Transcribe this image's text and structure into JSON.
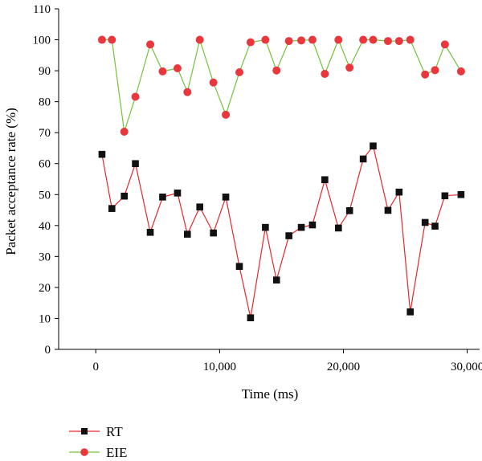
{
  "chart_data": {
    "type": "line",
    "xlabel": "Time (ms)",
    "ylabel": "Packet acceptance rate (%)",
    "xlim": [
      -3000,
      31000
    ],
    "ylim": [
      0,
      110
    ],
    "xticks": [
      0,
      10000,
      20000,
      30000
    ],
    "xtick_labels": [
      "0",
      "10,000",
      "20,000",
      "30,000"
    ],
    "yticks": [
      0,
      10,
      20,
      30,
      40,
      50,
      60,
      70,
      80,
      90,
      100,
      110
    ],
    "ytick_labels": [
      "0",
      "10",
      "20",
      "30",
      "40",
      "50",
      "60",
      "70",
      "80",
      "90",
      "100",
      "110"
    ],
    "grid": false,
    "legend_placement": "bottom-left, below plot",
    "series": [
      {
        "name": "RT",
        "color": "#e8262b",
        "marker": "square",
        "marker_color": "#111111",
        "x": [
          500,
          1300,
          2300,
          3200,
          4400,
          5400,
          6600,
          7400,
          8400,
          9500,
          10500,
          11600,
          12500,
          13700,
          14600,
          15600,
          16600,
          17500,
          18500,
          19600,
          20500,
          21600,
          22400,
          23600,
          24500,
          25400,
          26600,
          27400,
          28200,
          29500
        ],
        "values": [
          63,
          45.5,
          49.5,
          60,
          37.8,
          49.2,
          50.5,
          37.2,
          46,
          37.6,
          49.2,
          26.8,
          10.2,
          39.4,
          22.4,
          36.7,
          39.4,
          40.2,
          54.8,
          39.2,
          44.8,
          61.5,
          65.7,
          44.9,
          50.8,
          12.1,
          41,
          39.8,
          49.6,
          50
        ]
      },
      {
        "name": "EIE",
        "color": "#73c23a",
        "marker": "circle",
        "marker_color": "#e8383d",
        "x": [
          500,
          1300,
          2300,
          3200,
          4400,
          5400,
          6600,
          7400,
          8400,
          9500,
          10500,
          11600,
          12500,
          13700,
          14600,
          15600,
          16600,
          17500,
          18500,
          19600,
          20500,
          21600,
          22400,
          23600,
          24500,
          25400,
          26600,
          27400,
          28200,
          29500
        ],
        "values": [
          100,
          100,
          70.3,
          81.6,
          98.5,
          89.8,
          90.8,
          83.1,
          100,
          86.2,
          75.8,
          89.5,
          99.2,
          100,
          90.1,
          99.6,
          99.8,
          100,
          89,
          100,
          91,
          100,
          100,
          99.6,
          99.6,
          100,
          88.8,
          90.2,
          98.5,
          89.8
        ]
      }
    ]
  }
}
